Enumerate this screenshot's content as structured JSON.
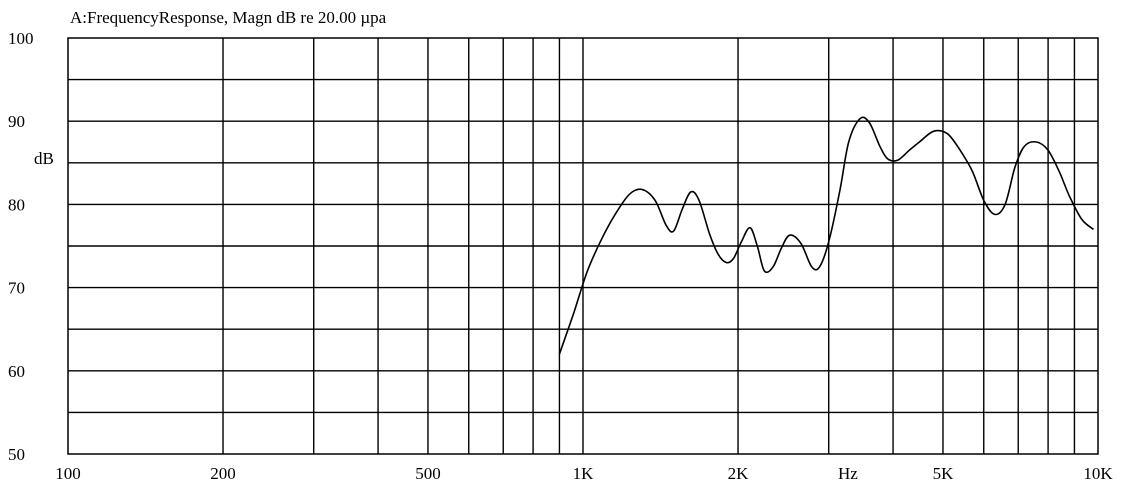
{
  "chart_data": {
    "type": "line",
    "title": "A:FrequencyResponse,  Magn dB re 20.00 µpa",
    "ylabel": "dB",
    "xlabel": "Hz",
    "xscale": "log",
    "xlim": [
      100,
      10000
    ],
    "ylim": [
      50,
      100
    ],
    "grid": true,
    "y_ticks": [
      {
        "value": 100,
        "label": "100"
      },
      {
        "value": 90,
        "label": "90"
      },
      {
        "value": 80,
        "label": "80"
      },
      {
        "value": 70,
        "label": "70"
      },
      {
        "value": 60,
        "label": "60"
      },
      {
        "value": 50,
        "label": "50"
      }
    ],
    "x_ticks": [
      {
        "value": 100,
        "label": "100"
      },
      {
        "value": 200,
        "label": "200"
      },
      {
        "value": 500,
        "label": "500"
      },
      {
        "value": 1000,
        "label": "1K"
      },
      {
        "value": 2000,
        "label": "2K"
      },
      {
        "value": 5000,
        "label": "5K"
      },
      {
        "value": 10000,
        "label": "10K"
      }
    ],
    "series": [
      {
        "x": [
          900,
          960,
          1020,
          1090,
          1160,
          1230,
          1300,
          1380,
          1450,
          1500,
          1560,
          1620,
          1680,
          1760,
          1830,
          1900,
          1960,
          2030,
          2110,
          2180,
          2250,
          2340,
          2430,
          2520,
          2650,
          2780,
          2880,
          3000,
          3150,
          3280,
          3450,
          3600,
          3770,
          3900,
          4080,
          4300,
          4500,
          4800,
          5100,
          5400,
          5700,
          6000,
          6300,
          6600,
          6900,
          7200,
          7600,
          8000,
          8400,
          8800,
          9300,
          9800
        ],
        "y": [
          62,
          67,
          72,
          76,
          79,
          81.2,
          81.8,
          80.5,
          77.5,
          76.8,
          79.5,
          81.5,
          80.5,
          76.5,
          74,
          73,
          73.5,
          75.5,
          77.2,
          75,
          72,
          72.5,
          74.8,
          76.3,
          75.3,
          72.5,
          72.5,
          75.5,
          81.5,
          87.5,
          90.3,
          89.8,
          87,
          85.5,
          85.3,
          86.5,
          87.5,
          88.8,
          88.5,
          86.5,
          84,
          80.5,
          78.8,
          80,
          84.5,
          87,
          87.5,
          86.5,
          84,
          81,
          78.2,
          77
        ]
      }
    ]
  }
}
